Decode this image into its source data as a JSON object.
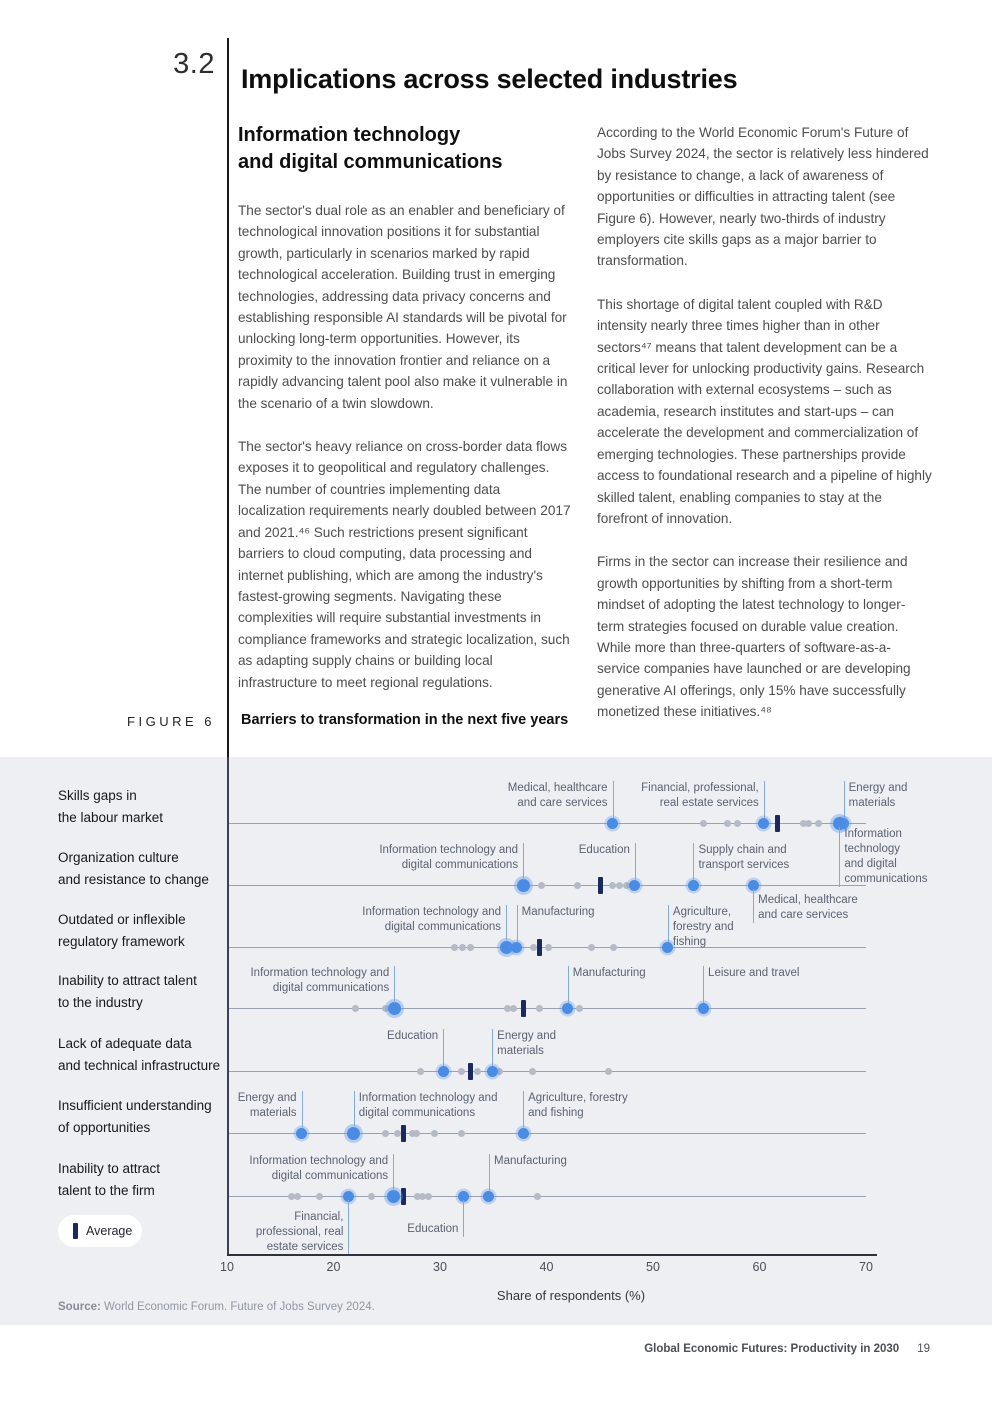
{
  "page": {
    "section_number": "3.2",
    "title": "Implications across selected industries",
    "footer": {
      "report_title": "Global Economic Futures: Productivity in 2030",
      "page_number": "19"
    }
  },
  "article": {
    "left_column": {
      "heading": "Information technology\nand digital communications",
      "paragraphs": [
        "The sector's dual role as an enabler and beneficiary of technological innovation positions it for substantial growth, particularly in scenarios marked by rapid technological acceleration. Building trust in emerging technologies, addressing data privacy concerns and establishing responsible AI standards will be pivotal for unlocking long-term opportunities. However, its proximity to the innovation frontier and reliance on a rapidly advancing talent pool also make it vulnerable in the scenario of a twin slowdown.",
        "The sector's heavy reliance on cross-border data flows exposes it to geopolitical and regulatory challenges. The number of countries implementing data localization requirements nearly doubled between 2017 and 2021.⁴⁶ Such restrictions present significant barriers to cloud computing, data processing and internet publishing, which are among the industry's fastest-growing segments. Navigating these complexities will require substantial investments in compliance frameworks and strategic localization, such as adapting supply chains or building local infrastructure to meet regional regulations."
      ]
    },
    "right_column": {
      "paragraphs": [
        "According to the World Economic Forum's Future of Jobs Survey 2024, the sector is relatively less hindered by resistance to change, a lack of awareness of opportunities or difficulties in attracting talent (see Figure 6). However, nearly two-thirds of industry employers cite skills gaps as a major barrier to transformation.",
        "This shortage of digital talent coupled with R&D intensity nearly three times higher than in other sectors⁴⁷ means that talent development can be a critical lever for unlocking productivity gains. Research collaboration with external ecosystems – such as academia, research institutes and start-ups – can accelerate the development and commercialization of emerging technologies. These partnerships provide access to foundational research and a pipeline of highly skilled talent, enabling companies to stay at the forefront of innovation.",
        "Firms in the sector can increase their resilience and growth opportunities by shifting from a short-term mindset of adopting the latest technology to longer-term strategies focused on durable value creation. While more than three-quarters of software-as-a-service companies have launched or are developing generative AI offerings, only 15% have successfully monetized these initiatives.⁴⁸"
      ]
    }
  },
  "figure": {
    "label": "FIGURE 6",
    "title": "Barriers to transformation in the next five years",
    "source_prefix": "Source:",
    "source_text": " World Economic Forum. Future of Jobs Survey 2024.",
    "legend_average_label": "Average"
  },
  "chart_data": {
    "type": "scatter",
    "title": "Barriers to transformation in the next five years",
    "xlabel": "Share of respondents (%)",
    "xlim": [
      10,
      70
    ],
    "xticks": [
      10,
      20,
      30,
      40,
      50,
      60,
      70
    ],
    "legend": [
      {
        "marker": "average-bar",
        "label": "Average"
      }
    ],
    "colors": {
      "highlighted_dot": "#4a8be4",
      "other_industry_dot": "#b4bac6",
      "average_marker": "#1a2a5c",
      "panel_background": "#edeff3",
      "leader_line": "#84aad8"
    },
    "rows": [
      {
        "category": "Skills gaps in\nthe labour market",
        "average": 61.7,
        "unlabeled_values": [
          54.7,
          57.0,
          57.9,
          64.1,
          64.6,
          65.5
        ],
        "labeled_points": [
          {
            "label": "Medical, healthcare\nand care services",
            "value": 46.2,
            "side": "above",
            "align": "right"
          },
          {
            "label": "Financial, professional,\nreal estate services",
            "value": 60.4,
            "side": "above",
            "align": "right"
          },
          {
            "label": "Energy and\nmaterials",
            "value": 67.9,
            "side": "above",
            "align": "left"
          },
          {
            "label": "Information\ntechnology\nand digital\ncommunications",
            "value": 67.5,
            "side": "below",
            "align": "left",
            "dy": 4,
            "highlight": true
          }
        ]
      },
      {
        "category": "Organization culture\nand resistance to change",
        "average": 45.1,
        "unlabeled_values": [
          39.5,
          42.9,
          46.2,
          46.9,
          47.5
        ],
        "labeled_points": [
          {
            "label": "Information technology and\ndigital communications",
            "value": 37.8,
            "side": "above",
            "align": "right",
            "highlight": true
          },
          {
            "label": "Education",
            "value": 48.3,
            "side": "above",
            "align": "right"
          },
          {
            "label": "Supply chain and\ntransport services",
            "value": 53.8,
            "side": "above",
            "align": "left"
          },
          {
            "label": "Medical, healthcare\nand care services",
            "value": 59.4,
            "side": "below",
            "align": "left",
            "dy": 8
          }
        ]
      },
      {
        "category": "Outdated or inflexible\nregulatory framework",
        "average": 39.3,
        "unlabeled_values": [
          31.4,
          32.1,
          32.9,
          38.8,
          40.2,
          44.2,
          46.3
        ],
        "labeled_points": [
          {
            "label": "Information technology and\ndigital communications",
            "value": 36.2,
            "side": "above",
            "align": "right",
            "highlight": true
          },
          {
            "label": "Manufacturing",
            "value": 37.2,
            "side": "above",
            "align": "left"
          },
          {
            "label": "Agriculture,\nforestry and\nfishing",
            "value": 51.4,
            "side": "above",
            "align": "left"
          }
        ]
      },
      {
        "category": "Inability to attract talent\nto the industry",
        "average": 37.8,
        "unlabeled_values": [
          22.1,
          24.9,
          36.3,
          36.9,
          39.3,
          43.1
        ],
        "labeled_points": [
          {
            "label": "Information technology and\ndigital communications",
            "value": 25.7,
            "side": "above",
            "align": "right",
            "highlight": true
          },
          {
            "label": "Manufacturing",
            "value": 42.0,
            "side": "above",
            "align": "left"
          },
          {
            "label": "Leisure and travel",
            "value": 54.7,
            "side": "above",
            "align": "left"
          }
        ]
      },
      {
        "category": "Lack of adequate data\nand technical infrastructure",
        "average": 32.9,
        "unlabeled_values": [
          28.2,
          32.0,
          33.5,
          35.6,
          38.7,
          45.8
        ],
        "labeled_points": [
          {
            "label": "Education",
            "value": 30.3,
            "side": "above",
            "align": "right"
          },
          {
            "label": "Energy and\nmaterials",
            "value": 34.9,
            "side": "above",
            "align": "left"
          }
        ]
      },
      {
        "category": "Insufficient understanding\nof opportunities",
        "average": 26.6,
        "unlabeled_values": [
          24.9,
          26.0,
          27.4,
          27.8,
          29.5,
          32.0
        ],
        "labeled_points": [
          {
            "label": "Energy and\nmaterials",
            "value": 17.0,
            "side": "above",
            "align": "right"
          },
          {
            "label": "Information technology and\ndigital communications",
            "value": 21.9,
            "side": "above",
            "align": "left",
            "highlight": true
          },
          {
            "label": "Agriculture, forestry\nand fishing",
            "value": 37.8,
            "side": "above",
            "align": "left"
          }
        ]
      },
      {
        "category": "Inability to attract\ntalent to the firm",
        "average": 26.6,
        "unlabeled_values": [
          16.1,
          16.6,
          18.7,
          23.6,
          27.9,
          28.4,
          28.9,
          39.2
        ],
        "labeled_points": [
          {
            "label": "Information technology and\ndigital communications",
            "value": 25.6,
            "side": "above",
            "align": "right",
            "highlight": true
          },
          {
            "label": "Manufacturing",
            "value": 34.6,
            "side": "above",
            "align": "left"
          },
          {
            "label": "Financial,\nprofessional, real\nestate services",
            "value": 21.4,
            "side": "below",
            "align": "right",
            "dy": 14
          },
          {
            "label": "Education",
            "value": 32.2,
            "side": "below",
            "align": "right",
            "dy": 26
          }
        ]
      }
    ]
  }
}
